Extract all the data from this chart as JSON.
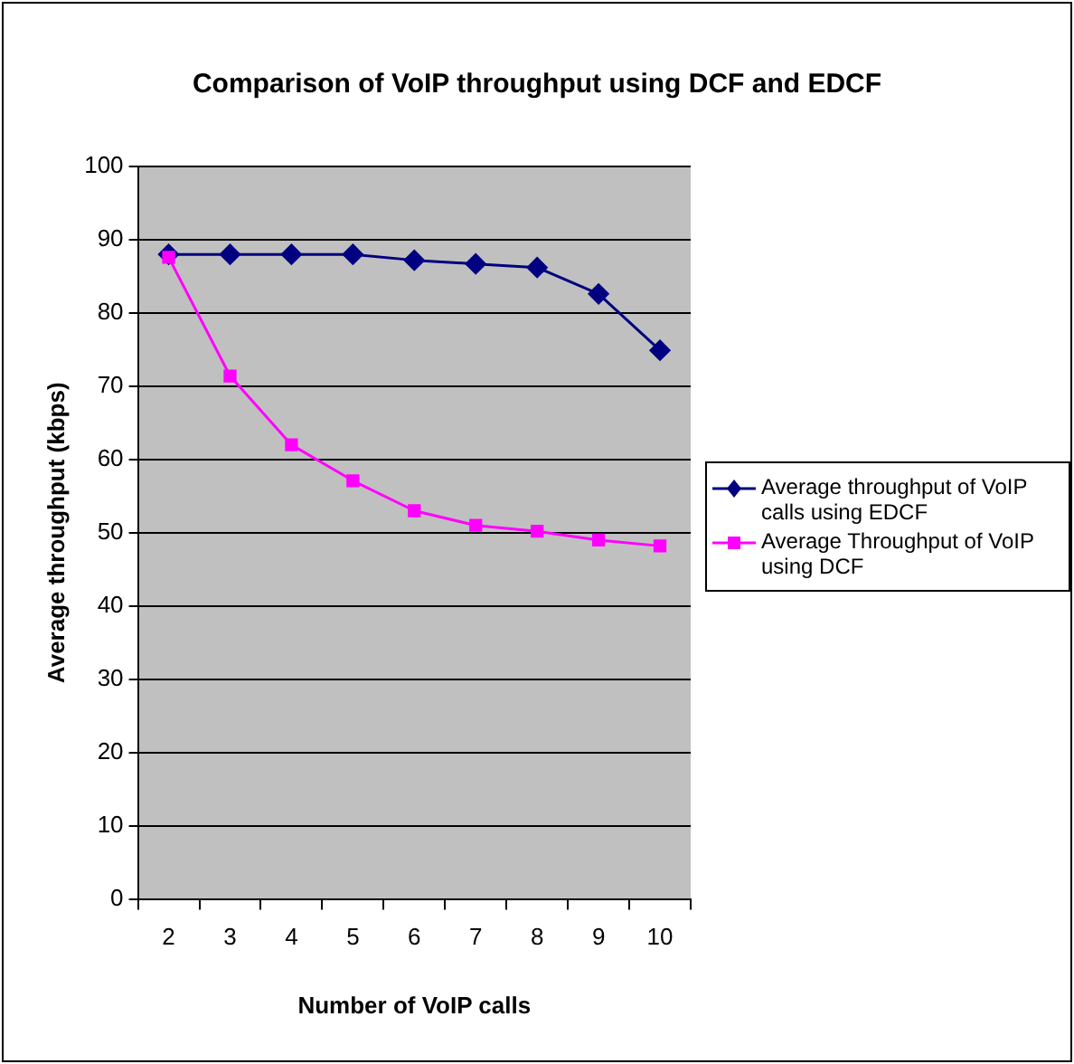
{
  "chart_data": {
    "type": "line",
    "title": "Comparison of VoIP throughput using DCF and EDCF",
    "xlabel": "Number of VoIP calls",
    "ylabel": "Average throughput (kbps)",
    "categories": [
      "2",
      "3",
      "4",
      "5",
      "6",
      "7",
      "8",
      "9",
      "10"
    ],
    "series": [
      {
        "name": "Average throughput of VoIP calls using EDCF",
        "color": "#000080",
        "marker": "diamond",
        "values": [
          88,
          88,
          88,
          88,
          87.2,
          86.7,
          86.2,
          82.6,
          74.9
        ]
      },
      {
        "name": "Average Throughput of VoIP using DCF",
        "color": "#ff00ff",
        "marker": "square",
        "values": [
          87.6,
          71.4,
          62,
          57.1,
          53,
          51,
          50.2,
          49,
          48.2
        ]
      }
    ],
    "ylim": [
      0,
      100
    ],
    "yticks": [
      0,
      10,
      20,
      30,
      40,
      50,
      60,
      70,
      80,
      90,
      100
    ],
    "grid": "y",
    "legend": "right"
  }
}
